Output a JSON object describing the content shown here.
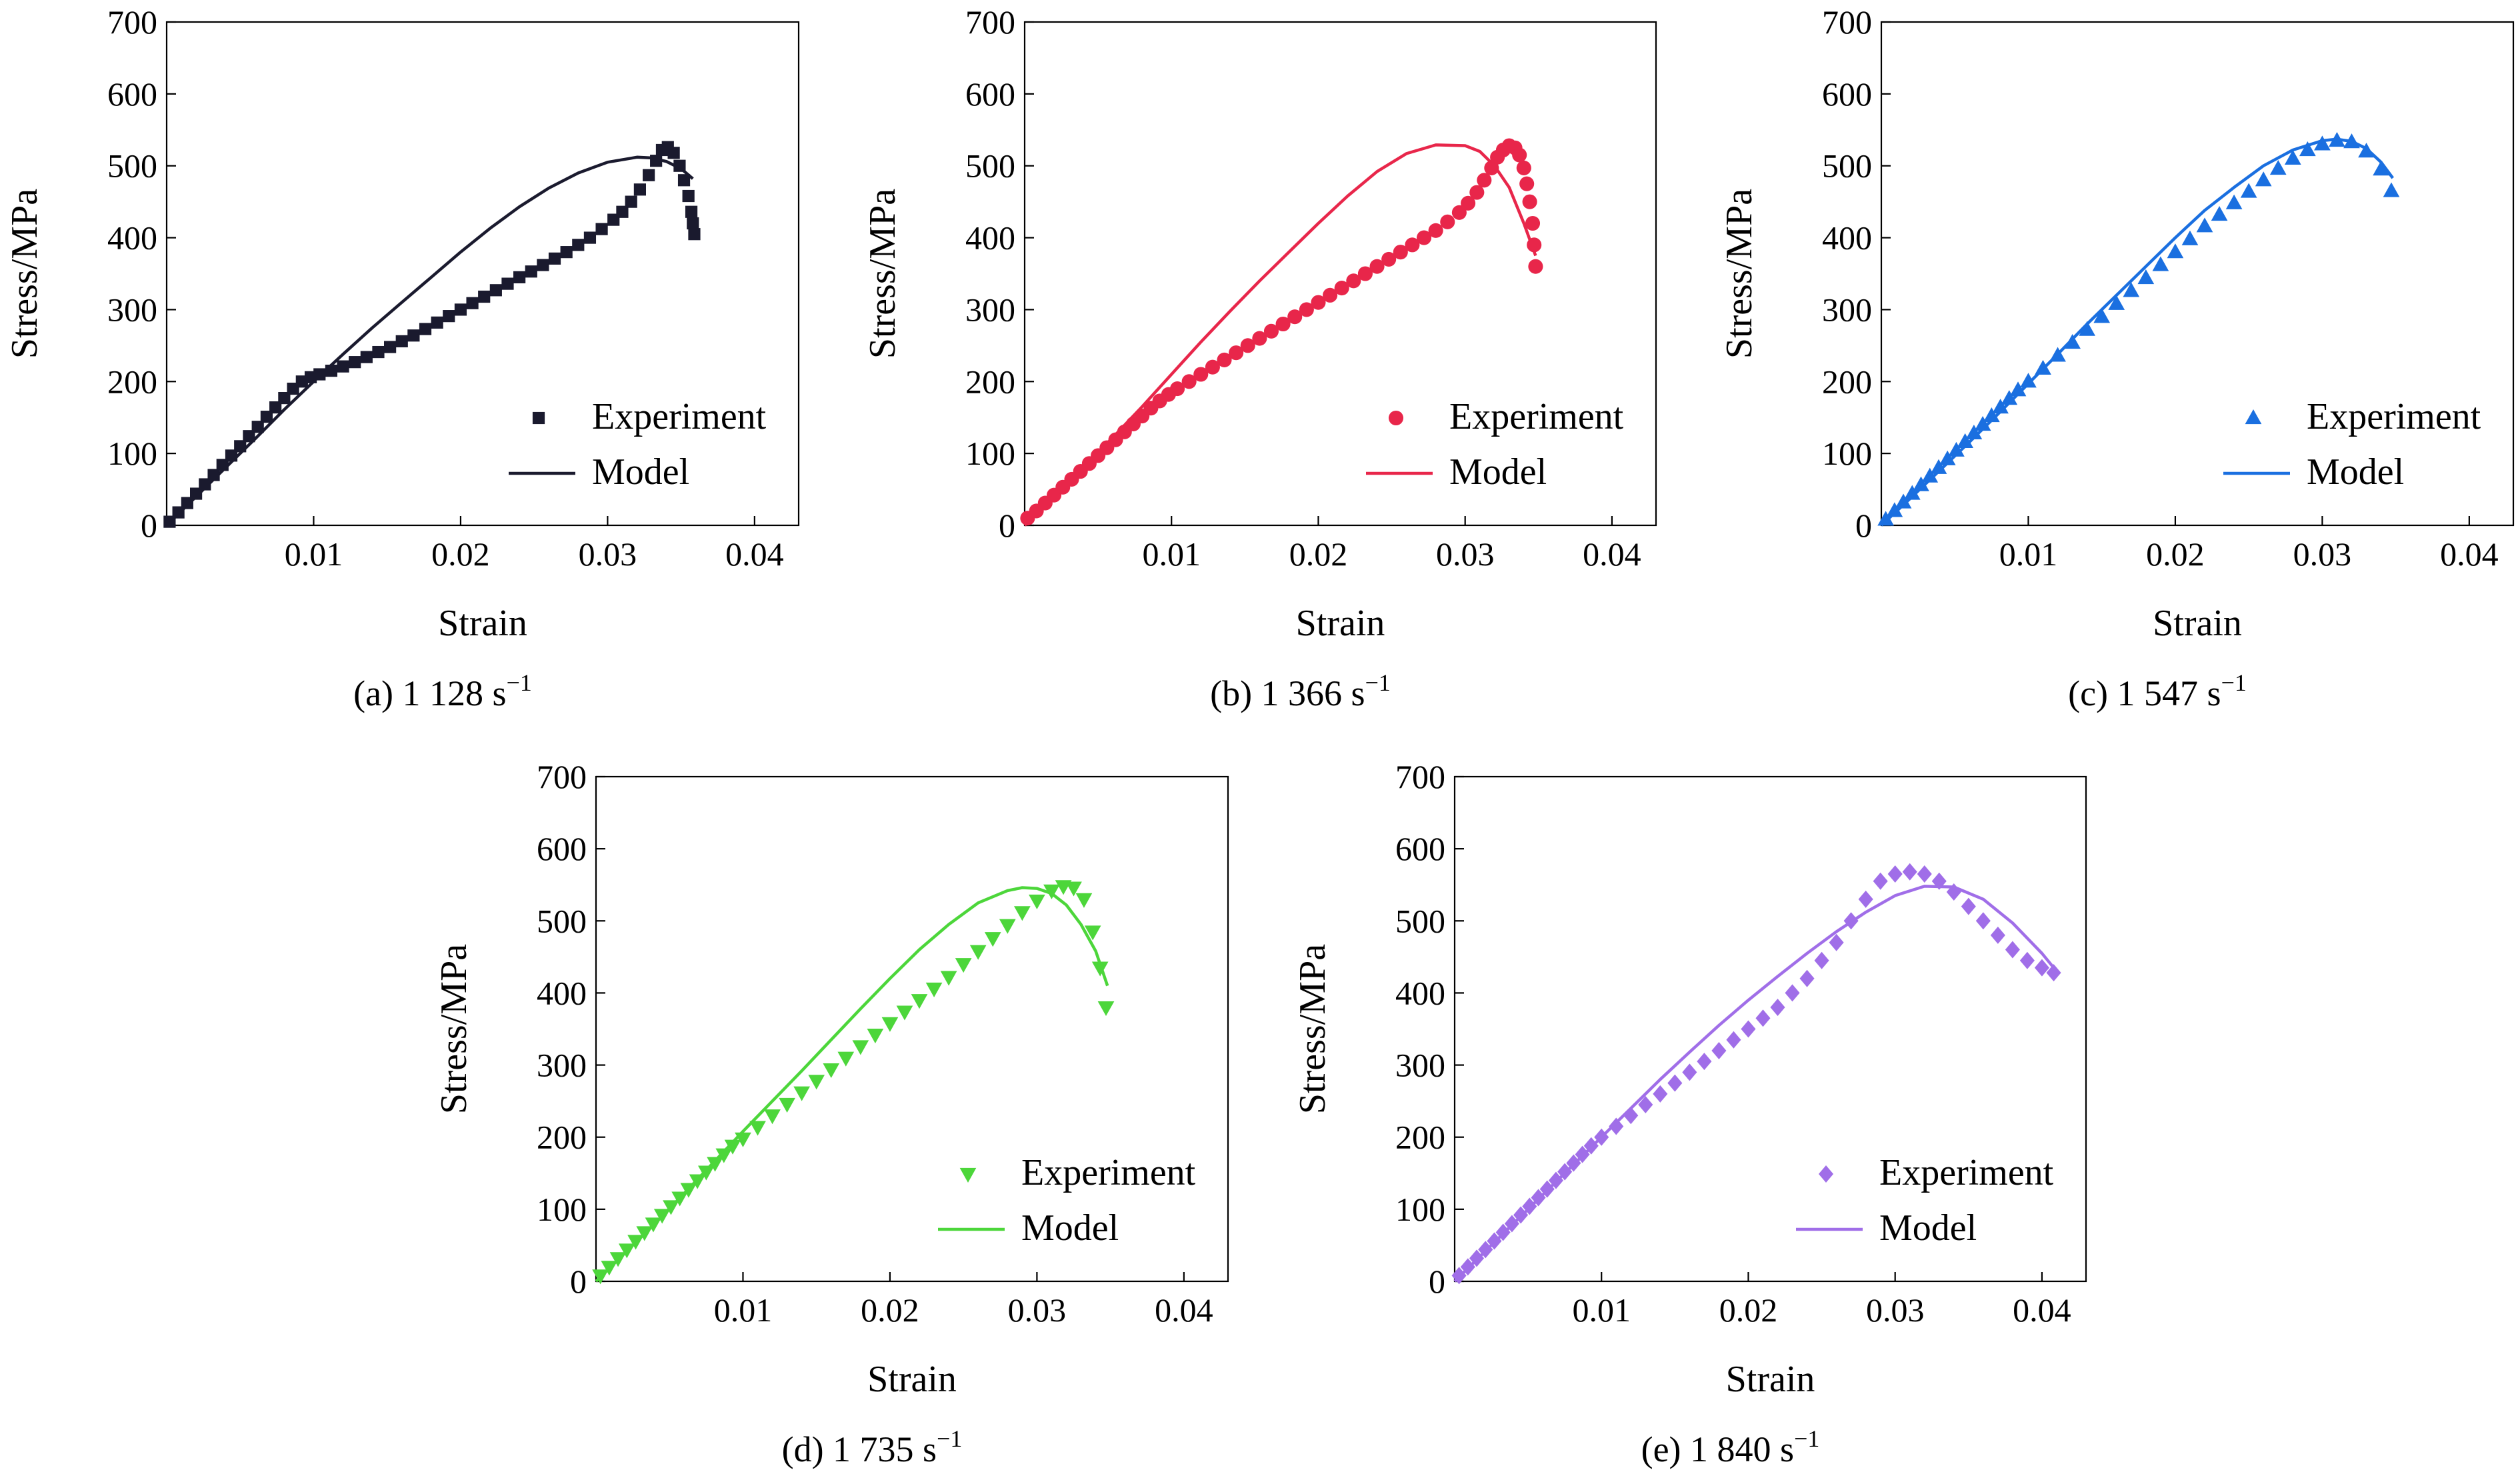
{
  "chart_data": [
    {
      "type": "scatter",
      "caption": "(a) 1 128 s",
      "caption_sup": "−1",
      "xlabel": "Strain",
      "ylabel": "Stress/MPa",
      "xlim": [
        0,
        0.043
      ],
      "ylim": [
        0,
        700
      ],
      "xticks": [
        "0.01",
        "0.02",
        "0.03",
        "0.04"
      ],
      "yticks": [
        "0",
        "100",
        "200",
        "300",
        "400",
        "500",
        "600",
        "700"
      ],
      "legend": "bottom-right",
      "color": "#1a1a2e",
      "marker": "square",
      "series": [
        {
          "name": "Experiment",
          "kind": "points",
          "x": [
            0.0002,
            0.0008,
            0.0014,
            0.002,
            0.0026,
            0.0032,
            0.0038,
            0.0044,
            0.005,
            0.0056,
            0.0062,
            0.0068,
            0.0074,
            0.008,
            0.0086,
            0.0092,
            0.0098,
            0.0104,
            0.0112,
            0.012,
            0.0128,
            0.0136,
            0.0144,
            0.0152,
            0.016,
            0.0168,
            0.0176,
            0.0184,
            0.0192,
            0.02,
            0.0208,
            0.0216,
            0.0224,
            0.0232,
            0.024,
            0.0248,
            0.0256,
            0.0264,
            0.0272,
            0.028,
            0.0288,
            0.0296,
            0.0304,
            0.031,
            0.0316,
            0.0322,
            0.0328,
            0.0333,
            0.0337,
            0.0341,
            0.0345,
            0.0349,
            0.0352,
            0.0355,
            0.0357,
            0.0358,
            0.0359
          ],
          "y": [
            5,
            18,
            31,
            44,
            57,
            70,
            84,
            97,
            110,
            124,
            137,
            151,
            164,
            177,
            190,
            200,
            206,
            210,
            215,
            221,
            227,
            234,
            241,
            248,
            256,
            264,
            273,
            282,
            291,
            300,
            309,
            318,
            327,
            336,
            345,
            353,
            362,
            371,
            380,
            390,
            400,
            412,
            425,
            436,
            450,
            467,
            487,
            507,
            522,
            526,
            518,
            500,
            480,
            458,
            436,
            420,
            405
          ]
        },
        {
          "name": "Model",
          "kind": "line",
          "x": [
            0,
            0.002,
            0.004,
            0.006,
            0.008,
            0.01,
            0.012,
            0.014,
            0.016,
            0.018,
            0.02,
            0.022,
            0.024,
            0.026,
            0.028,
            0.03,
            0.032,
            0.033,
            0.034,
            0.035,
            0.0358
          ],
          "y": [
            0,
            40,
            80,
            120,
            161,
            200,
            238,
            275,
            310,
            345,
            380,
            413,
            443,
            469,
            490,
            505,
            512,
            511,
            506,
            496,
            482
          ]
        }
      ]
    },
    {
      "type": "scatter",
      "caption": "(b) 1 366 s",
      "caption_sup": "−1",
      "xlabel": "Strain",
      "ylabel": "Stress/MPa",
      "xlim": [
        0,
        0.043
      ],
      "ylim": [
        0,
        700
      ],
      "xticks": [
        "0.01",
        "0.02",
        "0.03",
        "0.04"
      ],
      "yticks": [
        "0",
        "100",
        "200",
        "300",
        "400",
        "500",
        "600",
        "700"
      ],
      "legend": "bottom-right",
      "color": "#e8264a",
      "marker": "circle",
      "series": [
        {
          "name": "Experiment",
          "kind": "points",
          "x": [
            0.0002,
            0.0008,
            0.0014,
            0.002,
            0.0026,
            0.0032,
            0.0038,
            0.0044,
            0.005,
            0.0056,
            0.0062,
            0.0068,
            0.0074,
            0.008,
            0.0086,
            0.0092,
            0.0098,
            0.0104,
            0.0112,
            0.012,
            0.0128,
            0.0136,
            0.0144,
            0.0152,
            0.016,
            0.0168,
            0.0176,
            0.0184,
            0.0192,
            0.02,
            0.0208,
            0.0216,
            0.0224,
            0.0232,
            0.024,
            0.0248,
            0.0256,
            0.0264,
            0.0272,
            0.028,
            0.0288,
            0.0296,
            0.0302,
            0.0308,
            0.0313,
            0.0318,
            0.0322,
            0.0326,
            0.033,
            0.0334,
            0.0337,
            0.034,
            0.0342,
            0.0344,
            0.0346,
            0.0347,
            0.0348
          ],
          "y": [
            10,
            20,
            31,
            42,
            53,
            64,
            75,
            86,
            97,
            108,
            119,
            130,
            141,
            152,
            163,
            173,
            182,
            190,
            200,
            210,
            220,
            230,
            240,
            250,
            260,
            270,
            280,
            290,
            300,
            310,
            320,
            330,
            340,
            350,
            360,
            370,
            380,
            390,
            400,
            410,
            422,
            435,
            448,
            463,
            480,
            497,
            512,
            522,
            528,
            525,
            515,
            497,
            475,
            450,
            420,
            390,
            360
          ]
        },
        {
          "name": "Model",
          "kind": "line",
          "x": [
            0,
            0.002,
            0.004,
            0.006,
            0.008,
            0.01,
            0.012,
            0.014,
            0.016,
            0.018,
            0.02,
            0.022,
            0.024,
            0.026,
            0.028,
            0.03,
            0.031,
            0.032,
            0.033,
            0.034,
            0.0348
          ],
          "y": [
            0,
            40,
            80,
            122,
            165,
            210,
            255,
            298,
            340,
            380,
            420,
            458,
            492,
            517,
            529,
            528,
            520,
            500,
            470,
            420,
            375
          ]
        }
      ]
    },
    {
      "type": "scatter",
      "caption": "(c) 1 547 s",
      "caption_sup": "−1",
      "xlabel": "Strain",
      "ylabel": "Stress/MPa",
      "xlim": [
        0,
        0.043
      ],
      "ylim": [
        0,
        700
      ],
      "xticks": [
        "0.01",
        "0.02",
        "0.03",
        "0.04"
      ],
      "yticks": [
        "0",
        "100",
        "200",
        "300",
        "400",
        "500",
        "600",
        "700"
      ],
      "legend": "bottom-right",
      "color": "#1a6fe0",
      "marker": "triangle-up",
      "series": [
        {
          "name": "Experiment",
          "kind": "points",
          "x": [
            0.0003,
            0.0009,
            0.0015,
            0.0021,
            0.0027,
            0.0033,
            0.0039,
            0.0045,
            0.0051,
            0.0057,
            0.0063,
            0.0069,
            0.0075,
            0.0081,
            0.0087,
            0.0093,
            0.01,
            0.011,
            0.012,
            0.013,
            0.014,
            0.015,
            0.016,
            0.017,
            0.018,
            0.019,
            0.02,
            0.021,
            0.022,
            0.023,
            0.024,
            0.025,
            0.026,
            0.027,
            0.028,
            0.029,
            0.03,
            0.031,
            0.032,
            0.033,
            0.034,
            0.0347
          ],
          "y": [
            8,
            20,
            32,
            44,
            56,
            68,
            80,
            92,
            104,
            116,
            128,
            140,
            152,
            164,
            176,
            188,
            200,
            218,
            236,
            254,
            272,
            290,
            308,
            326,
            344,
            362,
            380,
            398,
            416,
            432,
            448,
            464,
            480,
            496,
            510,
            522,
            530,
            535,
            533,
            520,
            495,
            465
          ]
        },
        {
          "name": "Model",
          "kind": "line",
          "x": [
            0,
            0.002,
            0.004,
            0.006,
            0.008,
            0.01,
            0.012,
            0.014,
            0.016,
            0.018,
            0.02,
            0.022,
            0.024,
            0.026,
            0.028,
            0.03,
            0.031,
            0.032,
            0.033,
            0.034,
            0.0348
          ],
          "y": [
            0,
            38,
            77,
            116,
            156,
            197,
            238,
            280,
            320,
            360,
            400,
            438,
            470,
            500,
            522,
            535,
            537,
            534,
            524,
            505,
            483
          ]
        }
      ]
    },
    {
      "type": "scatter",
      "caption": "(d) 1 735 s",
      "caption_sup": "−1",
      "xlabel": "Strain",
      "ylabel": "Stress/MPa",
      "xlim": [
        0,
        0.043
      ],
      "ylim": [
        0,
        700
      ],
      "xticks": [
        "0.01",
        "0.02",
        "0.03",
        "0.04"
      ],
      "yticks": [
        "0",
        "100",
        "200",
        "300",
        "400",
        "500",
        "600",
        "700"
      ],
      "legend": "bottom-right",
      "color": "#4cd63a",
      "marker": "triangle-down",
      "series": [
        {
          "name": "Experiment",
          "kind": "points",
          "x": [
            0.0003,
            0.0009,
            0.0015,
            0.0021,
            0.0027,
            0.0033,
            0.0039,
            0.0045,
            0.0051,
            0.0057,
            0.0063,
            0.0069,
            0.0075,
            0.0081,
            0.0087,
            0.0093,
            0.01,
            0.011,
            0.012,
            0.013,
            0.014,
            0.015,
            0.016,
            0.017,
            0.018,
            0.019,
            0.02,
            0.021,
            0.022,
            0.023,
            0.024,
            0.025,
            0.026,
            0.027,
            0.028,
            0.029,
            0.03,
            0.031,
            0.0318,
            0.0325,
            0.0332,
            0.0338,
            0.0343,
            0.0347
          ],
          "y": [
            8,
            20,
            32,
            44,
            56,
            68,
            80,
            92,
            104,
            116,
            128,
            140,
            152,
            164,
            176,
            188,
            198,
            214,
            230,
            246,
            262,
            278,
            294,
            310,
            326,
            342,
            358,
            374,
            390,
            406,
            422,
            440,
            458,
            476,
            494,
            512,
            528,
            542,
            548,
            546,
            530,
            485,
            435,
            380
          ]
        },
        {
          "name": "Model",
          "kind": "line",
          "x": [
            0,
            0.002,
            0.004,
            0.006,
            0.008,
            0.01,
            0.012,
            0.014,
            0.016,
            0.018,
            0.02,
            0.022,
            0.024,
            0.026,
            0.028,
            0.029,
            0.03,
            0.031,
            0.032,
            0.033,
            0.034,
            0.0348
          ],
          "y": [
            0,
            40,
            80,
            122,
            165,
            208,
            250,
            292,
            335,
            378,
            420,
            460,
            495,
            525,
            542,
            546,
            545,
            538,
            522,
            495,
            458,
            410
          ]
        }
      ]
    },
    {
      "type": "scatter",
      "caption": "(e) 1 840 s",
      "caption_sup": "−1",
      "xlabel": "Strain",
      "ylabel": "Stress/MPa",
      "xlim": [
        0,
        0.043
      ],
      "ylim": [
        0,
        700
      ],
      "xticks": [
        "0.01",
        "0.02",
        "0.03",
        "0.04"
      ],
      "yticks": [
        "0",
        "100",
        "200",
        "300",
        "400",
        "500",
        "600",
        "700"
      ],
      "legend": "bottom-right",
      "color": "#a06ee8",
      "marker": "diamond",
      "series": [
        {
          "name": "Experiment",
          "kind": "points",
          "x": [
            0.0003,
            0.0009,
            0.0015,
            0.0021,
            0.0027,
            0.0033,
            0.0039,
            0.0045,
            0.0051,
            0.0057,
            0.0063,
            0.0069,
            0.0075,
            0.0081,
            0.0087,
            0.0093,
            0.01,
            0.011,
            0.012,
            0.013,
            0.014,
            0.015,
            0.016,
            0.017,
            0.018,
            0.019,
            0.02,
            0.021,
            0.022,
            0.023,
            0.024,
            0.025,
            0.026,
            0.027,
            0.028,
            0.029,
            0.03,
            0.031,
            0.032,
            0.033,
            0.034,
            0.035,
            0.036,
            0.037,
            0.038,
            0.039,
            0.04,
            0.0408
          ],
          "y": [
            8,
            20,
            32,
            44,
            56,
            68,
            80,
            92,
            104,
            116,
            128,
            140,
            152,
            164,
            176,
            188,
            200,
            215,
            230,
            245,
            260,
            275,
            290,
            305,
            320,
            335,
            350,
            365,
            380,
            400,
            420,
            445,
            470,
            500,
            530,
            555,
            565,
            568,
            565,
            555,
            540,
            520,
            500,
            480,
            460,
            445,
            435,
            428
          ]
        },
        {
          "name": "Model",
          "kind": "line",
          "x": [
            0,
            0.002,
            0.004,
            0.006,
            0.008,
            0.01,
            0.012,
            0.014,
            0.016,
            0.018,
            0.02,
            0.022,
            0.024,
            0.026,
            0.028,
            0.03,
            0.032,
            0.034,
            0.036,
            0.038,
            0.04,
            0.041
          ],
          "y": [
            0,
            40,
            80,
            120,
            160,
            200,
            240,
            280,
            318,
            355,
            390,
            423,
            455,
            485,
            512,
            535,
            548,
            547,
            530,
            497,
            455,
            430
          ]
        }
      ]
    }
  ]
}
